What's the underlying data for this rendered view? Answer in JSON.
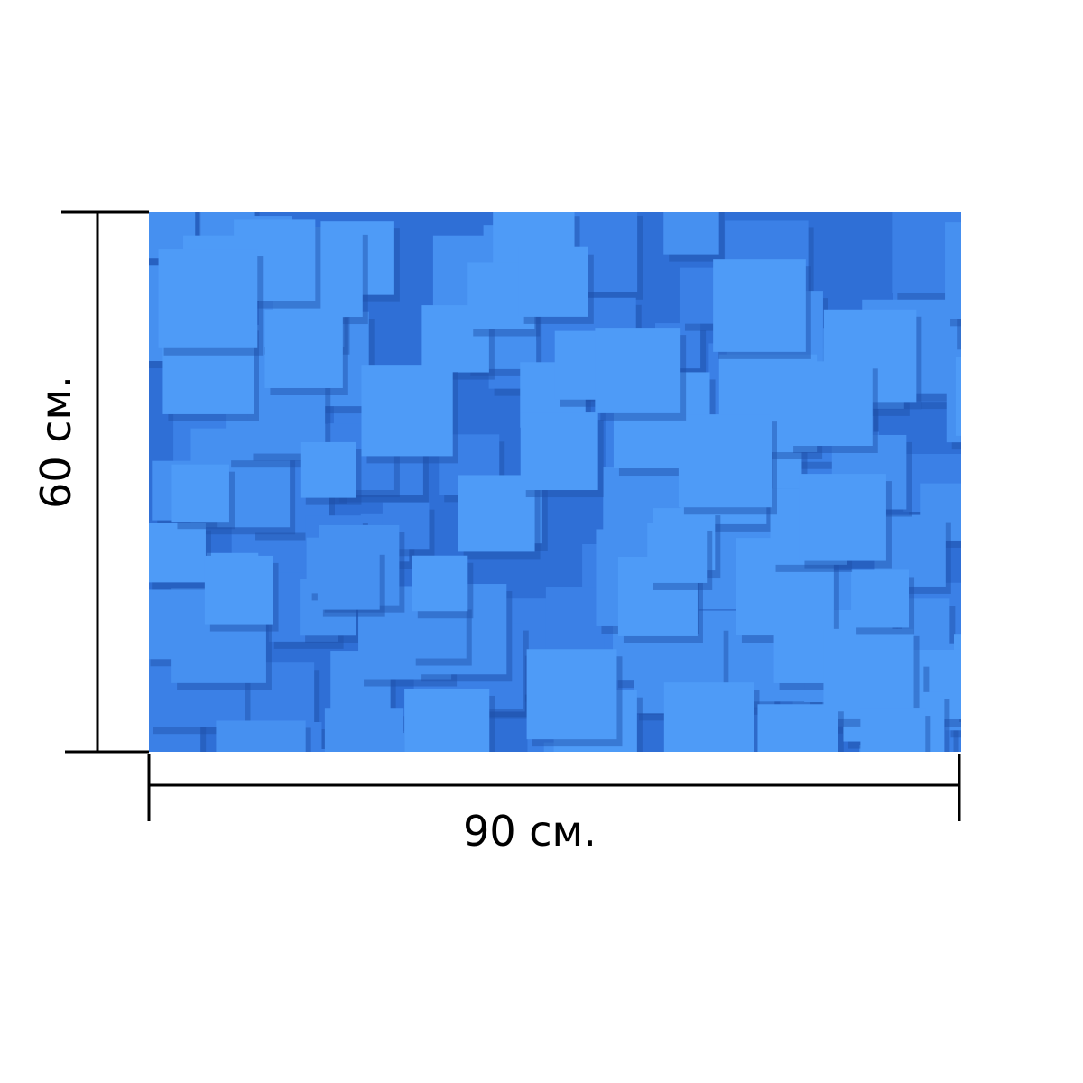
{
  "dimensions": {
    "width_label": "90 см.",
    "height_label": "60 см."
  }
}
